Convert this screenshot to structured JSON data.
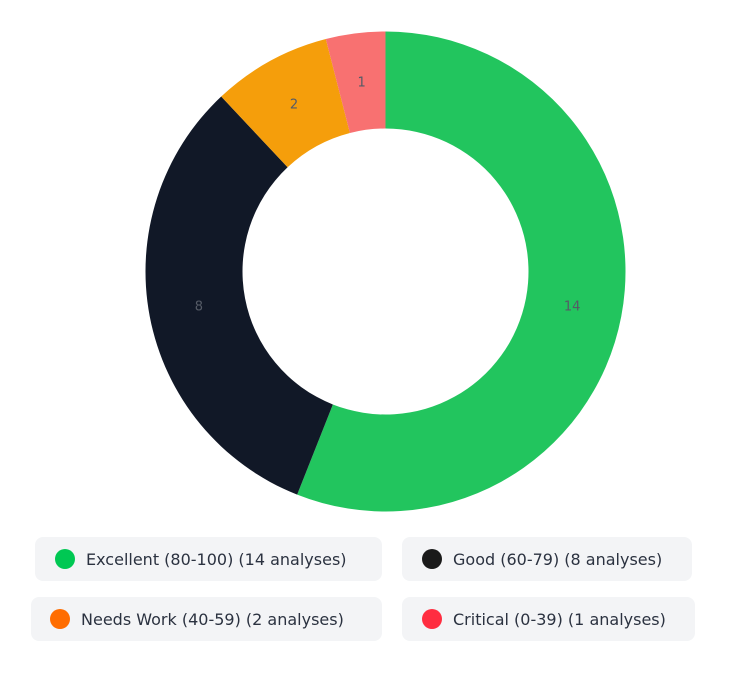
{
  "chart_data": {
    "type": "pie",
    "donut": true,
    "categories": [
      "Excellent (80-100)",
      "Good (60-79)",
      "Needs Work (40-59)",
      "Critical (0-39)"
    ],
    "values": [
      14,
      8,
      2,
      1
    ],
    "slice_colors": [
      "#22c55e",
      "#111827",
      "#f59e0b",
      "#f87171"
    ],
    "slice_labels": [
      "14",
      "8",
      "2",
      "1"
    ],
    "legend": {
      "placement": "bottom",
      "items": [
        {
          "label": "Excellent (80-100) (14 analyses)",
          "color": "#00c853"
        },
        {
          "label": "Good (60-79) (8 analyses)",
          "color": "#1a1a1a"
        },
        {
          "label": "Needs Work (40-59) (2 analyses)",
          "color": "#ff6d00"
        },
        {
          "label": "Critical (0-39) (1 analyses)",
          "color": "#ff2d40"
        }
      ]
    }
  }
}
